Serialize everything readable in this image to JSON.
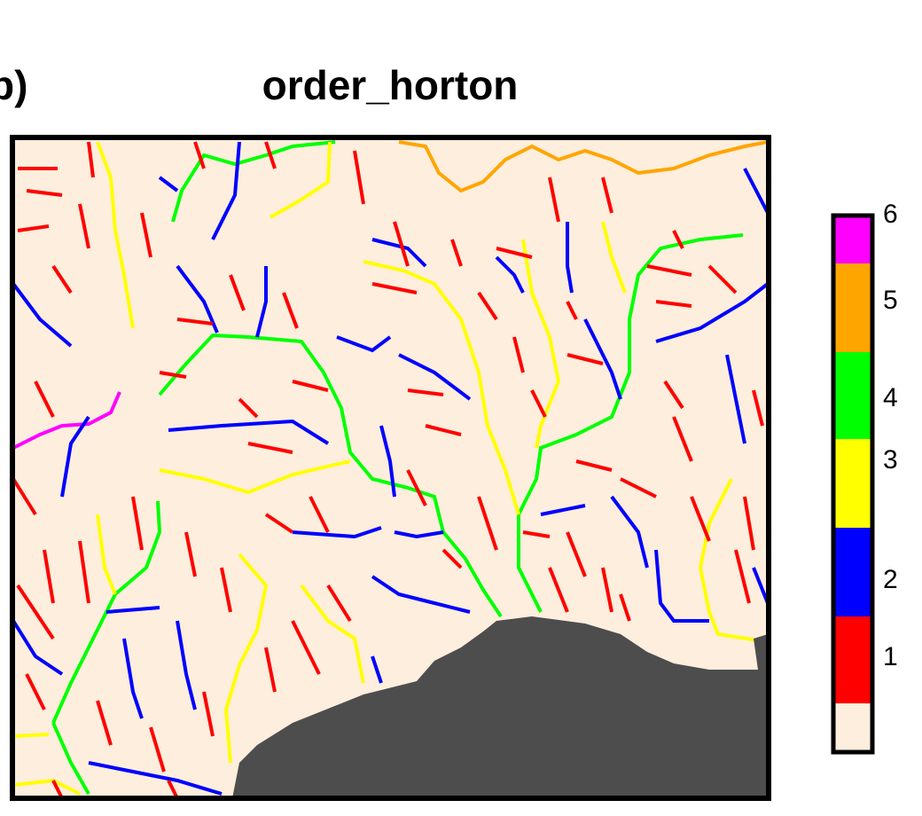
{
  "panel_label": "b)",
  "title": "order_horton",
  "legend": {
    "colors": [
      "#fdeedd",
      "#ff0000",
      "#0000ff",
      "#ffff00",
      "#00ff00",
      "#ffa500",
      "#ff00ff"
    ],
    "ticks": [
      1,
      2,
      3,
      4,
      5,
      6
    ]
  }
}
